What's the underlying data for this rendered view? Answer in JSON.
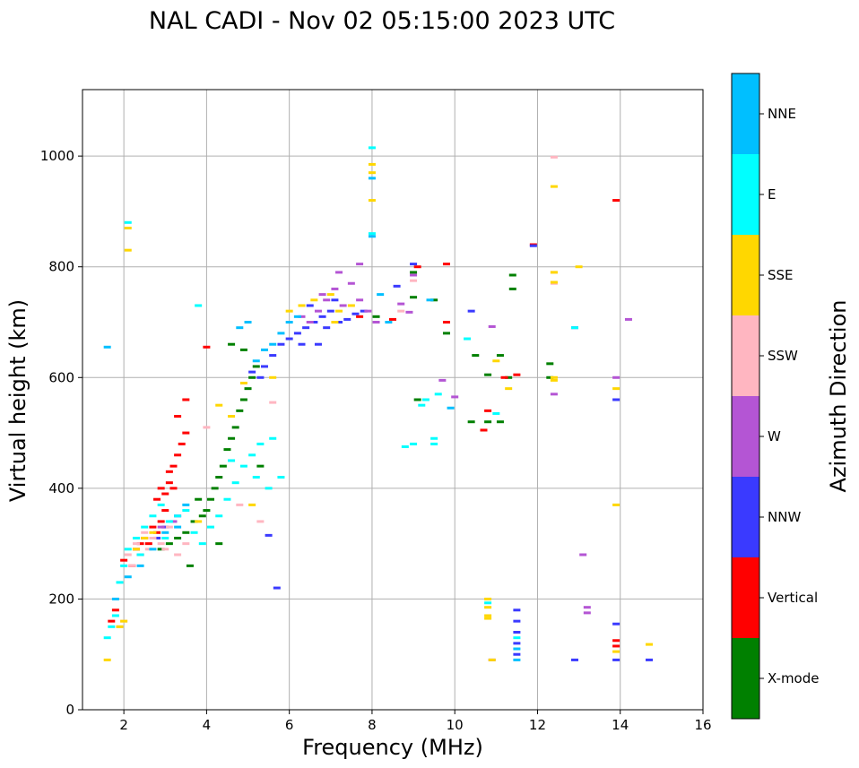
{
  "chart_data": {
    "type": "scatter",
    "title": "NAL CADI - Nov 02 05:15:00 2023 UTC",
    "xlabel": "Frequency (MHz)",
    "ylabel": "Virtual height (km)",
    "xlim": [
      1,
      16
    ],
    "ylim": [
      0,
      1120
    ],
    "xticks": [
      2,
      4,
      6,
      8,
      10,
      12,
      14,
      16
    ],
    "yticks": [
      0,
      200,
      400,
      600,
      800,
      1000
    ],
    "grid": true,
    "colorbar": {
      "label": "Azimuth Direction",
      "categories": [
        {
          "name": "X-mode",
          "color": "#008000"
        },
        {
          "name": "Vertical",
          "color": "#ff0000"
        },
        {
          "name": "NNW",
          "color": "#3a3aff"
        },
        {
          "name": "W",
          "color": "#b455d4"
        },
        {
          "name": "SSW",
          "color": "#ffb6c1"
        },
        {
          "name": "SSE",
          "color": "#ffd700"
        },
        {
          "name": "E",
          "color": "#00ffff"
        },
        {
          "name": "NNE",
          "color": "#00bfff"
        }
      ]
    },
    "series": [
      {
        "name": "X-mode",
        "points": [
          [
            2.9,
            290
          ],
          [
            3.1,
            300
          ],
          [
            3.3,
            310
          ],
          [
            3.5,
            320
          ],
          [
            3.7,
            340
          ],
          [
            3.9,
            350
          ],
          [
            4.0,
            360
          ],
          [
            4.1,
            380
          ],
          [
            4.2,
            400
          ],
          [
            4.3,
            420
          ],
          [
            4.4,
            440
          ],
          [
            4.5,
            470
          ],
          [
            4.6,
            490
          ],
          [
            4.7,
            510
          ],
          [
            4.8,
            540
          ],
          [
            4.9,
            560
          ],
          [
            5.0,
            580
          ],
          [
            5.1,
            600
          ],
          [
            5.2,
            620
          ],
          [
            4.6,
            660
          ],
          [
            4.9,
            650
          ],
          [
            8.1,
            710
          ],
          [
            9.0,
            745
          ],
          [
            9.0,
            790
          ],
          [
            9.1,
            560
          ],
          [
            9.5,
            740
          ],
          [
            9.8,
            680
          ],
          [
            10.4,
            520
          ],
          [
            10.5,
            640
          ],
          [
            10.7,
            505
          ],
          [
            10.8,
            520
          ],
          [
            10.8,
            605
          ],
          [
            11.1,
            640
          ],
          [
            11.1,
            520
          ],
          [
            11.3,
            600
          ],
          [
            11.4,
            785
          ],
          [
            11.4,
            760
          ],
          [
            12.3,
            625
          ],
          [
            12.3,
            600
          ],
          [
            3.8,
            380
          ],
          [
            4.3,
            300
          ],
          [
            3.6,
            260
          ],
          [
            5.3,
            440
          ]
        ]
      },
      {
        "name": "Vertical",
        "points": [
          [
            2.0,
            270
          ],
          [
            2.2,
            260
          ],
          [
            2.4,
            280
          ],
          [
            2.6,
            300
          ],
          [
            2.8,
            320
          ],
          [
            2.9,
            340
          ],
          [
            3.0,
            360
          ],
          [
            3.0,
            390
          ],
          [
            3.1,
            410
          ],
          [
            3.1,
            430
          ],
          [
            3.2,
            440
          ],
          [
            3.3,
            460
          ],
          [
            3.4,
            480
          ],
          [
            3.5,
            500
          ],
          [
            3.3,
            530
          ],
          [
            3.5,
            560
          ],
          [
            4.0,
            655
          ],
          [
            2.4,
            300
          ],
          [
            2.7,
            330
          ],
          [
            2.8,
            380
          ],
          [
            3.2,
            400
          ],
          [
            2.5,
            310
          ],
          [
            2.9,
            400
          ],
          [
            9.1,
            800
          ],
          [
            9.8,
            805
          ],
          [
            9.8,
            700
          ],
          [
            10.7,
            505
          ],
          [
            10.8,
            540
          ],
          [
            11.2,
            600
          ],
          [
            11.5,
            605
          ],
          [
            11.9,
            840
          ],
          [
            13.9,
            920
          ],
          [
            13.9,
            125
          ],
          [
            13.9,
            115
          ],
          [
            7.7,
            710
          ],
          [
            1.7,
            160
          ],
          [
            1.8,
            180
          ],
          [
            2.3,
            290
          ],
          [
            8.5,
            705
          ]
        ]
      },
      {
        "name": "NNW",
        "points": [
          [
            5.4,
            620
          ],
          [
            5.6,
            640
          ],
          [
            5.8,
            660
          ],
          [
            6.0,
            670
          ],
          [
            6.2,
            680
          ],
          [
            6.4,
            690
          ],
          [
            6.6,
            700
          ],
          [
            6.8,
            710
          ],
          [
            7.0,
            720
          ],
          [
            7.2,
            700
          ],
          [
            7.4,
            705
          ],
          [
            7.6,
            715
          ],
          [
            7.8,
            720
          ],
          [
            6.5,
            730
          ],
          [
            6.9,
            690
          ],
          [
            7.1,
            740
          ],
          [
            5.3,
            600
          ],
          [
            5.1,
            610
          ],
          [
            6.3,
            660
          ],
          [
            6.7,
            660
          ],
          [
            10.4,
            720
          ],
          [
            11.5,
            100
          ],
          [
            11.5,
            120
          ],
          [
            11.5,
            140
          ],
          [
            11.5,
            160
          ],
          [
            11.5,
            180
          ],
          [
            11.9,
            838
          ],
          [
            12.9,
            690
          ],
          [
            12.9,
            90
          ],
          [
            13.9,
            90
          ],
          [
            13.9,
            155
          ],
          [
            13.9,
            560
          ],
          [
            14.7,
            90
          ],
          [
            3.3,
            350
          ],
          [
            3.0,
            330
          ],
          [
            2.8,
            310
          ],
          [
            9.0,
            805
          ],
          [
            5.5,
            315
          ],
          [
            5.7,
            220
          ],
          [
            8.6,
            765
          ]
        ]
      },
      {
        "name": "W",
        "points": [
          [
            6.5,
            700
          ],
          [
            6.7,
            720
          ],
          [
            6.9,
            740
          ],
          [
            7.1,
            760
          ],
          [
            7.3,
            730
          ],
          [
            7.5,
            770
          ],
          [
            7.7,
            740
          ],
          [
            7.9,
            720
          ],
          [
            6.3,
            710
          ],
          [
            6.8,
            750
          ],
          [
            7.2,
            790
          ],
          [
            7.7,
            805
          ],
          [
            8.7,
            733
          ],
          [
            8.9,
            718
          ],
          [
            8.1,
            700
          ],
          [
            9.0,
            785
          ],
          [
            9.7,
            595
          ],
          [
            10.0,
            565
          ],
          [
            10.9,
            692
          ],
          [
            10.9,
            90
          ],
          [
            12.4,
            570
          ],
          [
            13.1,
            280
          ],
          [
            13.2,
            185
          ],
          [
            13.2,
            175
          ],
          [
            13.9,
            600
          ],
          [
            14.2,
            705
          ],
          [
            2.9,
            330
          ],
          [
            3.2,
            340
          ]
        ]
      },
      {
        "name": "SSW",
        "points": [
          [
            2.1,
            280
          ],
          [
            2.3,
            300
          ],
          [
            2.5,
            320
          ],
          [
            2.7,
            310
          ],
          [
            2.9,
            300
          ],
          [
            3.1,
            330
          ],
          [
            3.3,
            280
          ],
          [
            3.5,
            300
          ],
          [
            2.2,
            260
          ],
          [
            2.6,
            290
          ],
          [
            3.0,
            290
          ],
          [
            4.0,
            510
          ],
          [
            5.3,
            340
          ],
          [
            5.6,
            555
          ],
          [
            12.4,
            998
          ],
          [
            12.4,
            790
          ],
          [
            12.4,
            770
          ],
          [
            8.7,
            720
          ],
          [
            9.0,
            775
          ],
          [
            1.9,
            150
          ],
          [
            2.0,
            160
          ],
          [
            4.8,
            370
          ]
        ]
      },
      {
        "name": "SSE",
        "points": [
          [
            1.6,
            90
          ],
          [
            2.1,
            870
          ],
          [
            2.1,
            830
          ],
          [
            1.9,
            150
          ],
          [
            2.0,
            160
          ],
          [
            2.3,
            290
          ],
          [
            2.5,
            310
          ],
          [
            2.7,
            320
          ],
          [
            4.3,
            550
          ],
          [
            4.6,
            530
          ],
          [
            4.9,
            590
          ],
          [
            5.1,
            370
          ],
          [
            5.6,
            600
          ],
          [
            6.0,
            720
          ],
          [
            6.3,
            730
          ],
          [
            6.6,
            740
          ],
          [
            7.0,
            750
          ],
          [
            7.2,
            720
          ],
          [
            8.0,
            985
          ],
          [
            8.0,
            970
          ],
          [
            8.0,
            920
          ],
          [
            10.8,
            200
          ],
          [
            10.8,
            185
          ],
          [
            10.8,
            170
          ],
          [
            10.8,
            165
          ],
          [
            10.9,
            90
          ],
          [
            11.0,
            630
          ],
          [
            11.3,
            580
          ],
          [
            12.4,
            945
          ],
          [
            12.4,
            600
          ],
          [
            12.4,
            595
          ],
          [
            12.4,
            790
          ],
          [
            12.4,
            772
          ],
          [
            13.0,
            800
          ],
          [
            13.9,
            370
          ],
          [
            13.9,
            580
          ],
          [
            13.9,
            105
          ],
          [
            14.7,
            118
          ],
          [
            7.5,
            730
          ],
          [
            7.1,
            700
          ],
          [
            3.8,
            340
          ]
        ]
      },
      {
        "name": "E",
        "points": [
          [
            1.6,
            130
          ],
          [
            1.7,
            150
          ],
          [
            1.8,
            170
          ],
          [
            1.9,
            230
          ],
          [
            2.0,
            260
          ],
          [
            2.1,
            290
          ],
          [
            2.3,
            310
          ],
          [
            2.5,
            330
          ],
          [
            2.7,
            350
          ],
          [
            2.9,
            370
          ],
          [
            3.1,
            340
          ],
          [
            3.3,
            350
          ],
          [
            3.5,
            360
          ],
          [
            3.7,
            320
          ],
          [
            3.9,
            300
          ],
          [
            4.1,
            330
          ],
          [
            4.3,
            350
          ],
          [
            4.5,
            380
          ],
          [
            4.7,
            410
          ],
          [
            4.9,
            440
          ],
          [
            5.1,
            460
          ],
          [
            5.3,
            480
          ],
          [
            5.6,
            490
          ],
          [
            4.6,
            450
          ],
          [
            5.2,
            420
          ],
          [
            5.5,
            400
          ],
          [
            5.8,
            420
          ],
          [
            3.8,
            730
          ],
          [
            2.1,
            880
          ],
          [
            8.0,
            860
          ],
          [
            8.0,
            1015
          ],
          [
            8.8,
            475
          ],
          [
            9.0,
            480
          ],
          [
            9.2,
            550
          ],
          [
            9.3,
            560
          ],
          [
            9.5,
            480
          ],
          [
            9.5,
            490
          ],
          [
            9.6,
            570
          ],
          [
            10.3,
            670
          ],
          [
            11.0,
            535
          ],
          [
            12.9,
            690
          ],
          [
            10.8,
            193
          ],
          [
            11.5,
            130
          ],
          [
            2.4,
            280
          ],
          [
            3.0,
            310
          ]
        ]
      },
      {
        "name": "NNE",
        "points": [
          [
            1.6,
            655
          ],
          [
            1.8,
            200
          ],
          [
            2.1,
            240
          ],
          [
            2.4,
            260
          ],
          [
            2.7,
            290
          ],
          [
            3.0,
            320
          ],
          [
            3.3,
            330
          ],
          [
            5.2,
            630
          ],
          [
            5.4,
            650
          ],
          [
            5.6,
            660
          ],
          [
            5.8,
            680
          ],
          [
            6.0,
            700
          ],
          [
            6.2,
            710
          ],
          [
            8.0,
            960
          ],
          [
            8.0,
            855
          ],
          [
            8.2,
            750
          ],
          [
            8.4,
            700
          ],
          [
            9.4,
            740
          ],
          [
            9.9,
            545
          ],
          [
            11.5,
            110
          ],
          [
            11.5,
            90
          ],
          [
            4.8,
            690
          ],
          [
            5.0,
            700
          ],
          [
            3.5,
            370
          ]
        ]
      }
    ]
  }
}
